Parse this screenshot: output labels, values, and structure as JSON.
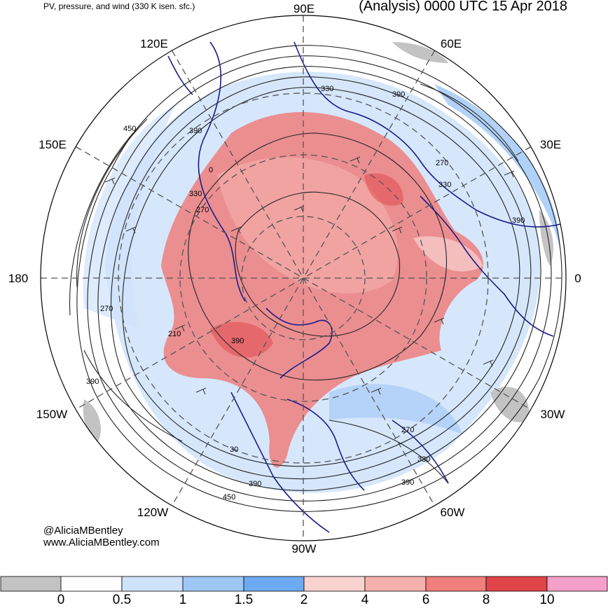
{
  "title_left": "PV, pressure, and wind (330 K isen. sfc.)",
  "title_right": "(Analysis) 0000 UTC 15 Apr 2018",
  "longitude_labels": [
    {
      "id": "90e",
      "text": "90E"
    },
    {
      "id": "60e",
      "text": "60E"
    },
    {
      "id": "30e",
      "text": "30E"
    },
    {
      "id": "0",
      "text": "0"
    },
    {
      "id": "30w",
      "text": "30W"
    },
    {
      "id": "60w",
      "text": "60W"
    },
    {
      "id": "90w",
      "text": "90W"
    },
    {
      "id": "120w",
      "text": "120W"
    },
    {
      "id": "150w",
      "text": "150W"
    },
    {
      "id": "180",
      "text": "180"
    },
    {
      "id": "150e",
      "text": "150E"
    },
    {
      "id": "120e",
      "text": "120E"
    }
  ],
  "contour_labels": [
    "330",
    "390",
    "450",
    "390",
    "0",
    "330",
    "270",
    "270",
    "330",
    "390",
    "210",
    "270",
    "390",
    "270",
    "330",
    "390",
    "390",
    "450",
    "390",
    "30"
  ],
  "credit": {
    "line1": "@AliciaMBentley",
    "line2": "www.AliciaMBentley.com"
  },
  "colorbar": {
    "colors": [
      "#c3c3c3",
      "#ffffff",
      "#cfe3fb",
      "#9ec7f6",
      "#6eaaf1",
      "#f8d3d0",
      "#f5b0ad",
      "#ef7e7c",
      "#e04448",
      "#f4a0c8"
    ],
    "labels": [
      "0",
      "0.5",
      "1",
      "1.5",
      "2",
      "4",
      "6",
      "8",
      "10"
    ]
  },
  "colors": {
    "coastline": "#1b1b8a",
    "contour": "#222222",
    "grid": "#555555"
  }
}
